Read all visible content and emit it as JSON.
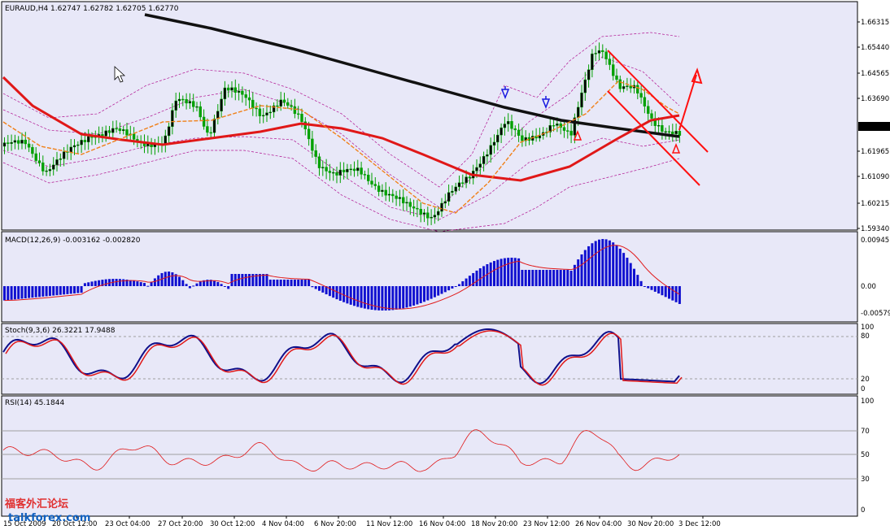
{
  "colors": {
    "background": "#e8e8f8",
    "panel_border": "#000000",
    "price_candle": "#00a000",
    "ma_slow": "#111111",
    "ma_mid": "#e01818",
    "ma_fast": "#f08018",
    "bands": "#b01090",
    "macd_hist": "#1010d0",
    "macd_signal": "#e01818",
    "stoch_main": "#10108a",
    "stoch_signal": "#e01818",
    "rsi_line": "#e01818",
    "price_label_bg": "#000000",
    "price_label_fg": "#ffffff",
    "trend_arrows": "#ff1010",
    "fractal_down": "#1818e0",
    "fractal_up": "#ff1010"
  },
  "main": {
    "header": "EURAUD,H4  1.62747 1.62782 1.62705 1.62770",
    "price_levels": [
      "1.66315",
      "1.65440",
      "1.64565",
      "1.63690",
      "1.62770",
      "1.61965",
      "1.61090",
      "1.60215",
      "1.59340"
    ],
    "current_price": "1.62770"
  },
  "macd": {
    "header": "MACD(12,26,9) -0.003162 -0.002820",
    "levels": [
      "0.00945",
      "0.00",
      "-0.00579"
    ]
  },
  "stoch": {
    "header": "Stoch(9,3,6) 26.3221 17.9488",
    "levels": [
      "100",
      "80",
      "20",
      "0"
    ]
  },
  "rsi": {
    "header": "RSI(14) 45.1844",
    "levels": [
      "100",
      "70",
      "50",
      "30",
      "0"
    ]
  },
  "time_axis": [
    "15 Oct 2009",
    "20 Oct 12:00",
    "23 Oct 04:00",
    "27 Oct 20:00",
    "30 Oct 12:00",
    "4 Nov 04:00",
    "6 Nov 20:00",
    "11 Nov 12:00",
    "16 Nov 04:00",
    "18 Nov 20:00",
    "23 Nov 12:00",
    "26 Nov 04:00",
    "30 Nov 20:00",
    "3 Dec 12:00"
  ],
  "watermark": {
    "top": "福客外汇论坛",
    "bottom": "talkforex.com"
  }
}
